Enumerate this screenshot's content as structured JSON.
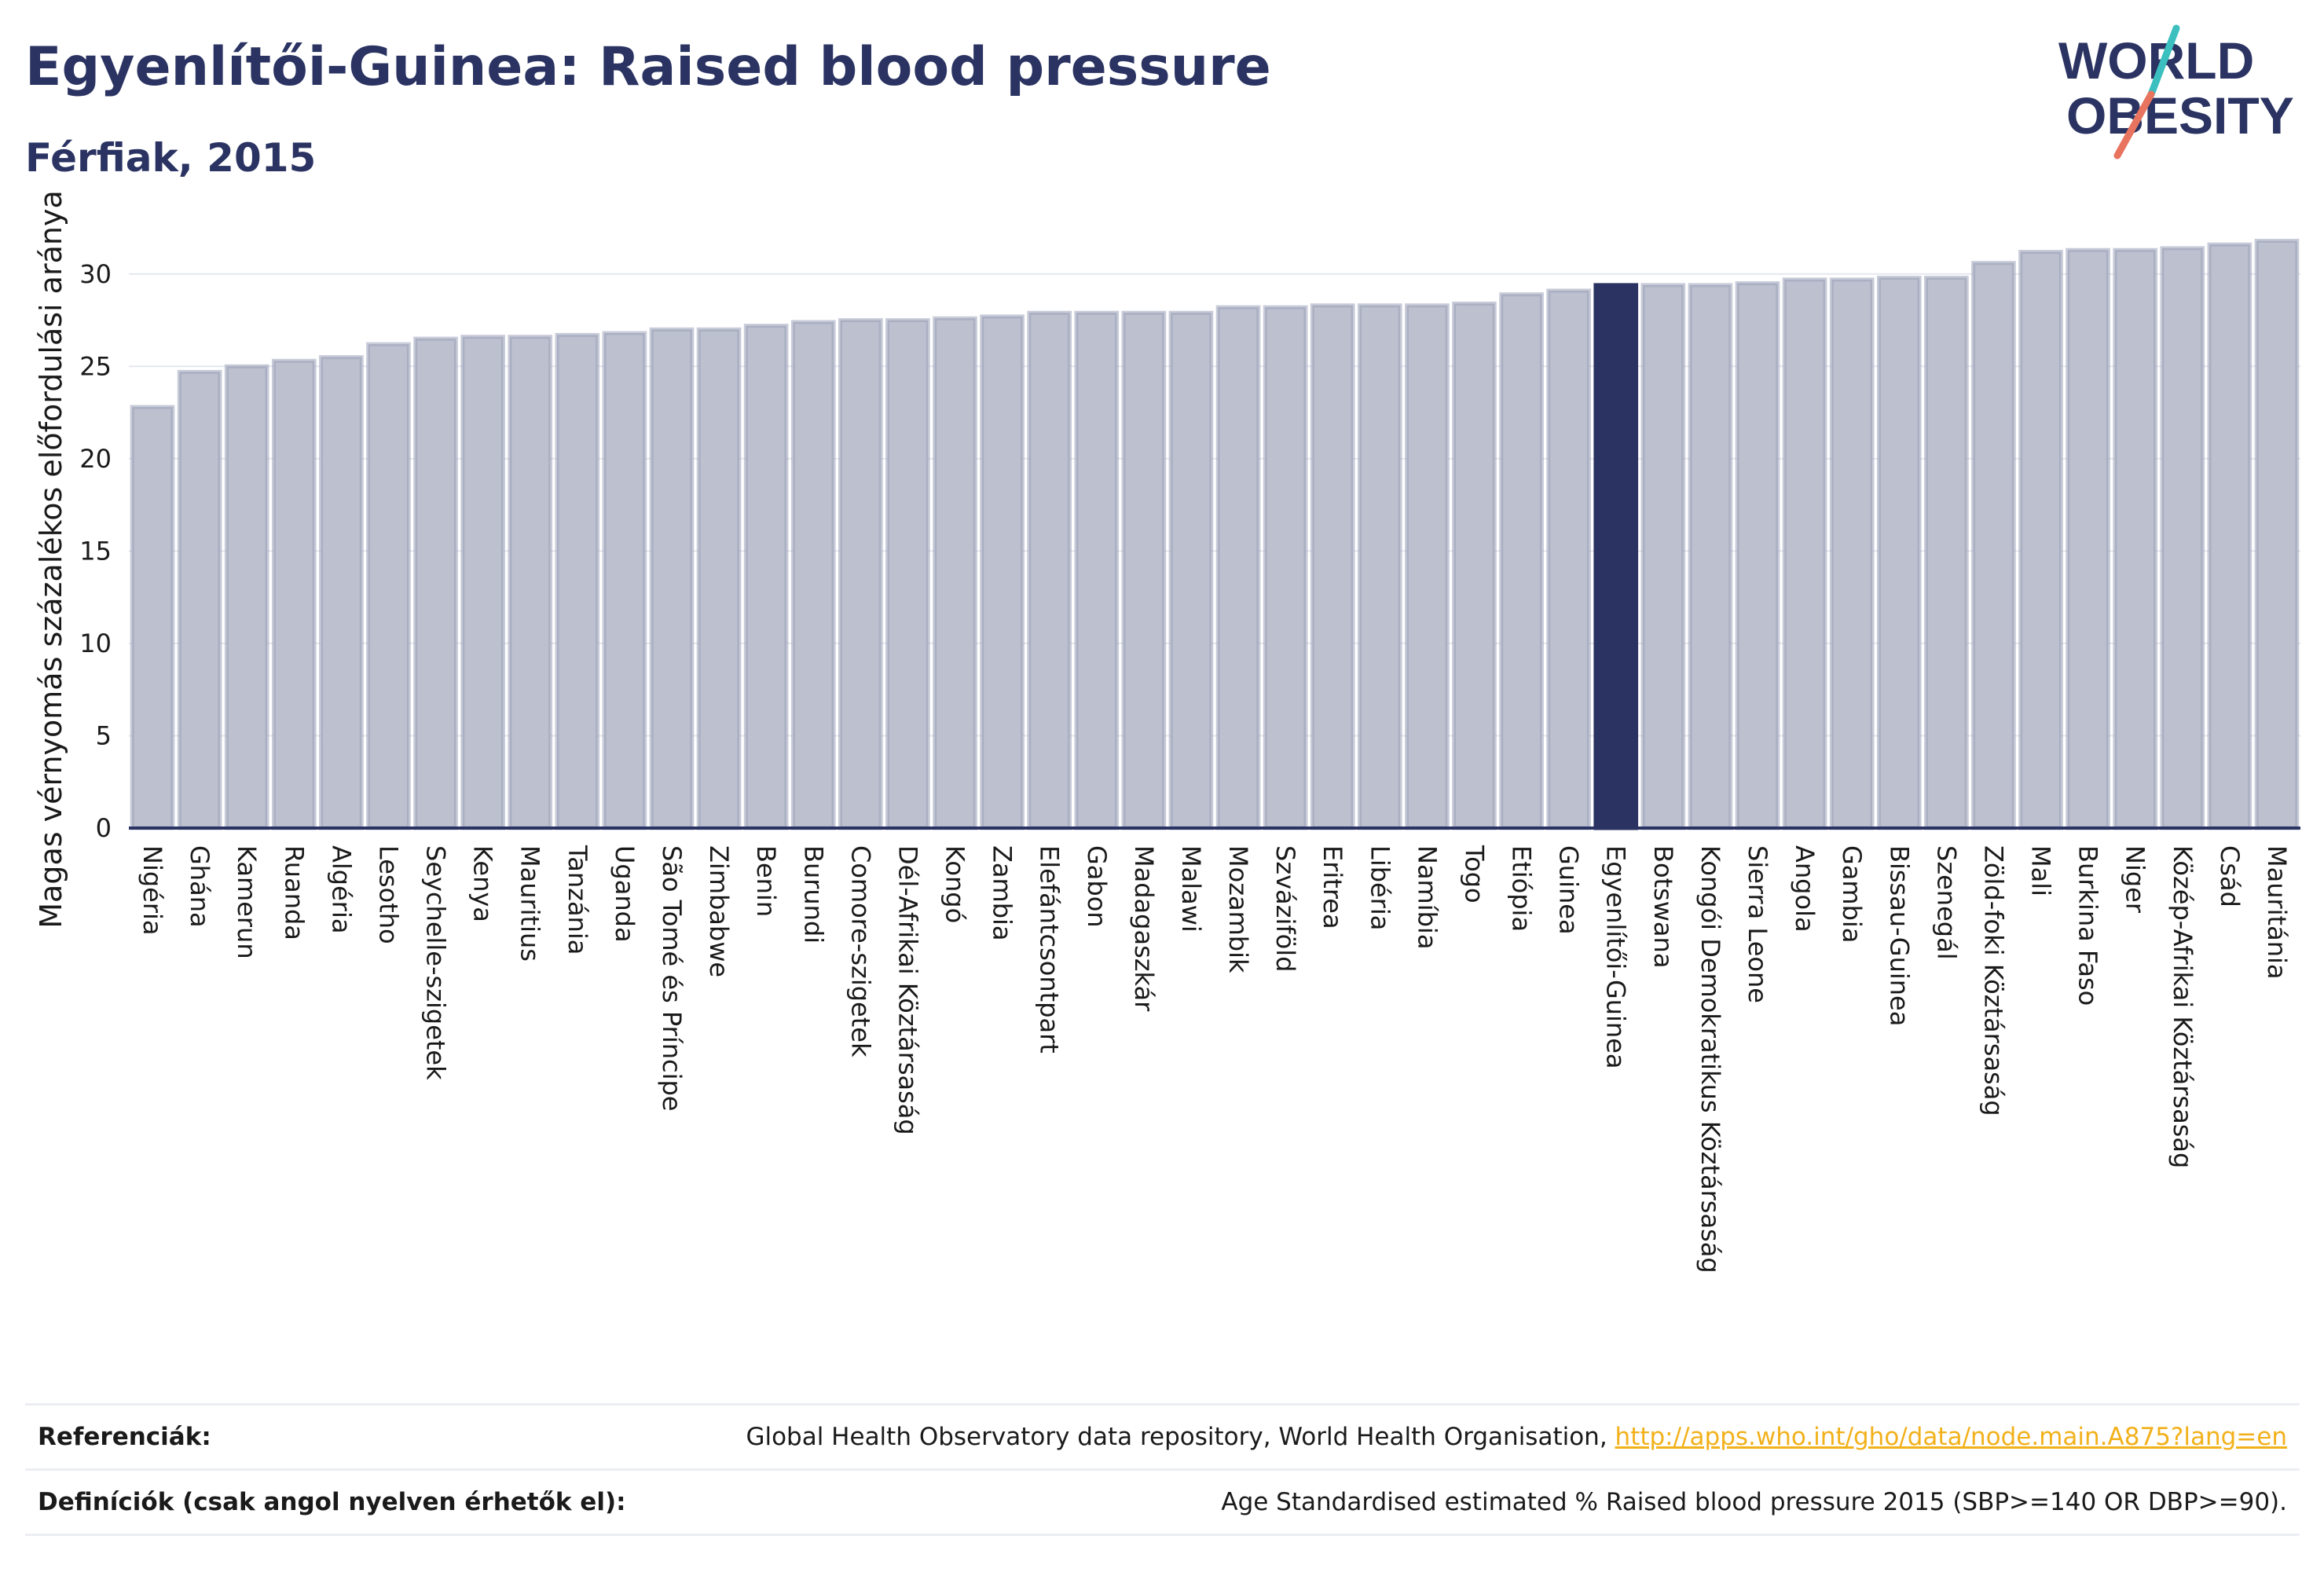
{
  "title": "Egyenlítői-Guinea: Raised blood pressure",
  "subtitle": "Férfiak, 2015",
  "logo": {
    "line1": "WORLD",
    "line2": "OBESITY"
  },
  "colors": {
    "bar": "#bcc0cf",
    "bar_edge": "#9aa0b8",
    "highlight": "#2a3362",
    "accent_teal": "#3bbfbf",
    "accent_red": "#e8735f"
  },
  "chart_data": {
    "type": "bar",
    "title": "Egyenlítői-Guinea: Raised blood pressure",
    "subtitle": "Férfiak, 2015",
    "xlabel": "",
    "ylabel": "Magas vérnyomás százalékos előfordulási aránya",
    "ylim": [
      0,
      32.5
    ],
    "yticks": [
      0,
      5,
      10,
      15,
      20,
      25,
      30
    ],
    "grid": true,
    "highlight": "Egyenlítői-Guinea",
    "categories": [
      "Nigéria",
      "Ghána",
      "Kamerun",
      "Ruanda",
      "Algéria",
      "Lesotho",
      "Seychelle-szigetek",
      "Kenya",
      "Mauritius",
      "Tanzánia",
      "Uganda",
      "São Tomé és Príncipe",
      "Zimbabwe",
      "Benin",
      "Burundi",
      "Comore-szigetek",
      "Dél-Afrikai Köztársaság",
      "Kongó",
      "Zambia",
      "Elefántcsontpart",
      "Gabon",
      "Madagaszkár",
      "Malawi",
      "Mozambik",
      "Szváziföld",
      "Eritrea",
      "Libéria",
      "Namíbia",
      "Togo",
      "Etiópia",
      "Guinea",
      "Egyenlítői-Guinea",
      "Botswana",
      "Kongói Demokratikus Köztársaság",
      "Sierra Leone",
      "Angola",
      "Gambia",
      "Bissau-Guinea",
      "Szenegál",
      "Zöld-foki Köztársaság",
      "Mali",
      "Burkina Faso",
      "Niger",
      "Közép-Afrikai Köztársaság",
      "Csád",
      "Mauritánia"
    ],
    "values": [
      22.8,
      24.7,
      25.0,
      25.3,
      25.5,
      26.2,
      26.5,
      26.6,
      26.6,
      26.7,
      26.8,
      27.0,
      27.0,
      27.2,
      27.4,
      27.5,
      27.5,
      27.6,
      27.7,
      27.9,
      27.9,
      27.9,
      27.9,
      28.2,
      28.2,
      28.3,
      28.3,
      28.3,
      28.4,
      28.9,
      29.1,
      29.4,
      29.4,
      29.4,
      29.5,
      29.7,
      29.7,
      29.8,
      29.8,
      30.6,
      31.2,
      31.3,
      31.3,
      31.4,
      31.6,
      31.8
    ]
  },
  "footer": {
    "references_label": "Referenciák:",
    "references_text": "Global Health Observatory data repository, World Health Organisation, ",
    "references_link": "http://apps.who.int/gho/data/node.main.A875?lang=en",
    "definitions_label": "Definíciók (csak angol nyelven érhetők el):",
    "definitions_text": "Age Standardised estimated % Raised blood pressure 2015 (SBP>=140 OR DBP>=90)."
  }
}
